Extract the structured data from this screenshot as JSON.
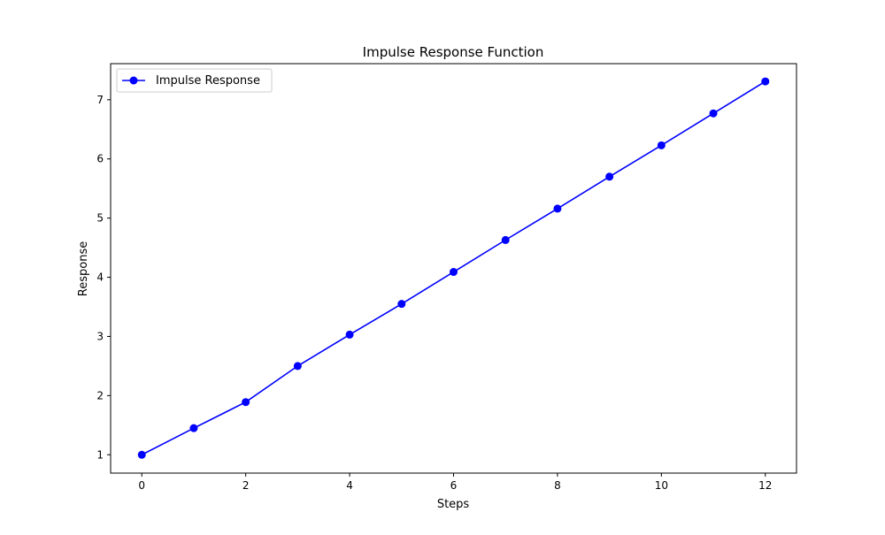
{
  "chart_data": {
    "type": "line",
    "title": "Impulse Response Function",
    "xlabel": "Steps",
    "ylabel": "Response",
    "xlim": [
      -0.6,
      12.6
    ],
    "ylim": [
      0.69,
      7.61
    ],
    "xticks": [
      0,
      2,
      4,
      6,
      8,
      10,
      12
    ],
    "yticks": [
      1,
      2,
      3,
      4,
      5,
      6,
      7
    ],
    "grid": false,
    "legend_position": "top-left",
    "x": [
      0,
      1,
      2,
      3,
      4,
      5,
      6,
      7,
      8,
      9,
      10,
      11,
      12
    ],
    "series": [
      {
        "name": "Impulse Response",
        "color": "#0000ff",
        "marker": "circle",
        "values": [
          1.0,
          1.45,
          1.89,
          2.5,
          3.03,
          3.55,
          4.09,
          4.63,
          5.16,
          5.7,
          6.23,
          6.77,
          7.31
        ]
      }
    ]
  }
}
